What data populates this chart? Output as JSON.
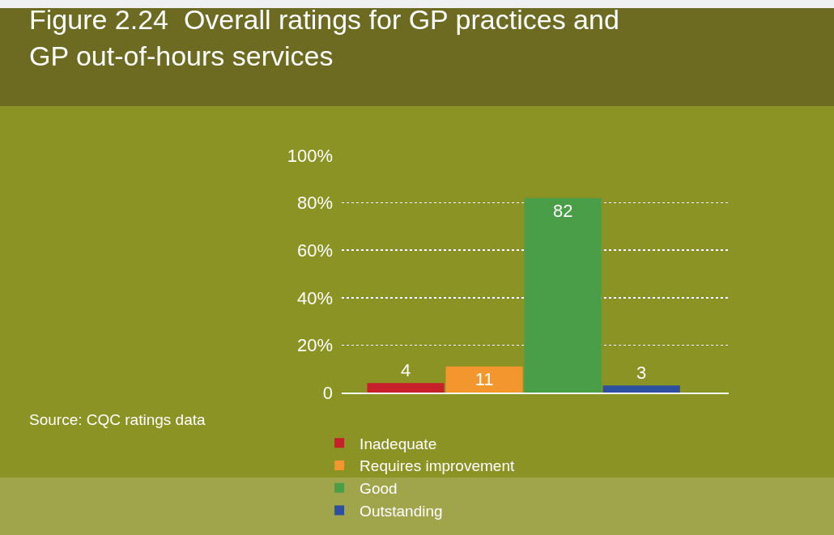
{
  "chart_data": {
    "type": "bar",
    "title": "Figure 2.24  Overall ratings for GP practices and\nGP out-of-hours services",
    "categories": [
      null,
      null,
      null,
      null
    ],
    "series": [
      {
        "name": "Inadequate",
        "color": "#c8202a",
        "values": [
          4,
          null,
          null,
          null
        ]
      },
      {
        "name": "Requires improvement",
        "color": "#f4962e",
        "values": [
          null,
          11,
          null,
          null
        ]
      },
      {
        "name": "Good",
        "color": "#4a9e48",
        "values": [
          null,
          null,
          82,
          null
        ]
      },
      {
        "name": "Outstanding",
        "color": "#2d4fa0",
        "values": [
          null,
          null,
          null,
          3
        ]
      }
    ],
    "ylim": [
      0,
      100
    ],
    "yticks": [
      {
        "value": 0,
        "label": "0"
      },
      {
        "value": 20,
        "label": "20%"
      },
      {
        "value": 40,
        "label": "40%"
      },
      {
        "value": 60,
        "label": "60%"
      },
      {
        "value": 80,
        "label": "80%"
      },
      {
        "value": 100,
        "label": "100%"
      }
    ],
    "grid": "y",
    "legend": "bottom",
    "data_labels": true,
    "tick_labels": "y",
    "annotations": [
      "Source: CQC ratings data"
    ]
  }
}
